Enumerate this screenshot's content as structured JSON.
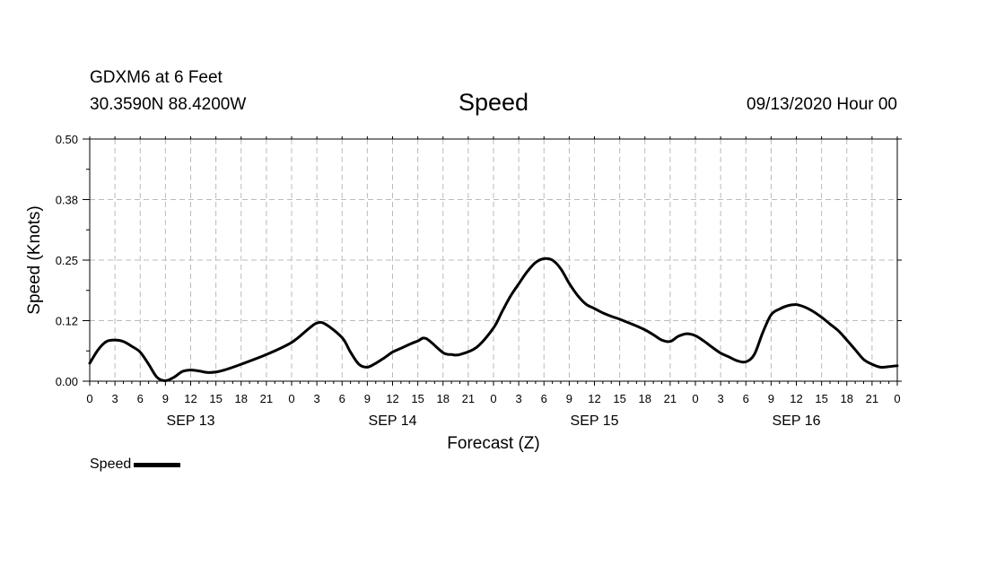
{
  "header": {
    "station": "GDXM6 at 6 Feet",
    "coords": "30.3590N 88.4200W",
    "title": "Speed",
    "date": "09/13/2020 Hour 00"
  },
  "legend": {
    "label": "Speed"
  },
  "colors": {
    "line": "#000000",
    "grid": "#bbbbbb",
    "axis": "#000000"
  },
  "chart_data": {
    "type": "line",
    "title": "Speed",
    "xlabel": "Forecast (Z)",
    "ylabel": "Speed (Knots)",
    "ylim": [
      0,
      0.5
    ],
    "yticks": [
      "0.00",
      "0.12",
      "0.25",
      "0.38",
      "0.50"
    ],
    "xlim": [
      0,
      96
    ],
    "xtick_step_hours": 3,
    "xtick_labels": [
      "0",
      "3",
      "6",
      "9",
      "12",
      "15",
      "18",
      "21",
      "0",
      "3",
      "6",
      "9",
      "12",
      "15",
      "18",
      "21",
      "0",
      "3",
      "6",
      "9",
      "12",
      "15",
      "18",
      "21",
      "0",
      "3",
      "6",
      "9",
      "12",
      "15",
      "18",
      "21",
      "0"
    ],
    "day_labels": [
      "SEP 13",
      "SEP 14",
      "SEP 15",
      "SEP 16"
    ],
    "grid": true,
    "series": [
      {
        "name": "Speed",
        "x": [
          0,
          1,
          2,
          3,
          4,
          5,
          6,
          7,
          8,
          9,
          10,
          11,
          12,
          13,
          14,
          15,
          16,
          18,
          21,
          24,
          26,
          27,
          28,
          30,
          31,
          32,
          33,
          34,
          35,
          36,
          37,
          38,
          39,
          40,
          42,
          43,
          44,
          46,
          48,
          49,
          50,
          51,
          52,
          53,
          54,
          55,
          56,
          57,
          58,
          59,
          60,
          61,
          62,
          63,
          64,
          65,
          66,
          67,
          68,
          69,
          70,
          71,
          72,
          73,
          74,
          75,
          76,
          77,
          78,
          79,
          80,
          81,
          82,
          83,
          84,
          85,
          86,
          87,
          88,
          89,
          90,
          91,
          92,
          93,
          94,
          95,
          96
        ],
        "values": [
          0.037,
          0.065,
          0.082,
          0.085,
          0.082,
          0.072,
          0.06,
          0.035,
          0.008,
          0.001,
          0.008,
          0.02,
          0.023,
          0.021,
          0.018,
          0.019,
          0.023,
          0.035,
          0.055,
          0.08,
          0.108,
          0.12,
          0.118,
          0.09,
          0.06,
          0.035,
          0.029,
          0.037,
          0.048,
          0.06,
          0.068,
          0.076,
          0.083,
          0.088,
          0.059,
          0.055,
          0.055,
          0.07,
          0.11,
          0.143,
          0.175,
          0.201,
          0.226,
          0.245,
          0.253,
          0.25,
          0.232,
          0.202,
          0.177,
          0.159,
          0.15,
          0.141,
          0.134,
          0.128,
          0.121,
          0.114,
          0.106,
          0.096,
          0.085,
          0.082,
          0.093,
          0.098,
          0.094,
          0.083,
          0.07,
          0.058,
          0.05,
          0.042,
          0.04,
          0.055,
          0.1,
          0.137,
          0.149,
          0.156,
          0.158,
          0.153,
          0.144,
          0.132,
          0.118,
          0.104,
          0.085,
          0.065,
          0.045,
          0.035,
          0.029,
          0.03,
          0.032
        ]
      }
    ]
  }
}
